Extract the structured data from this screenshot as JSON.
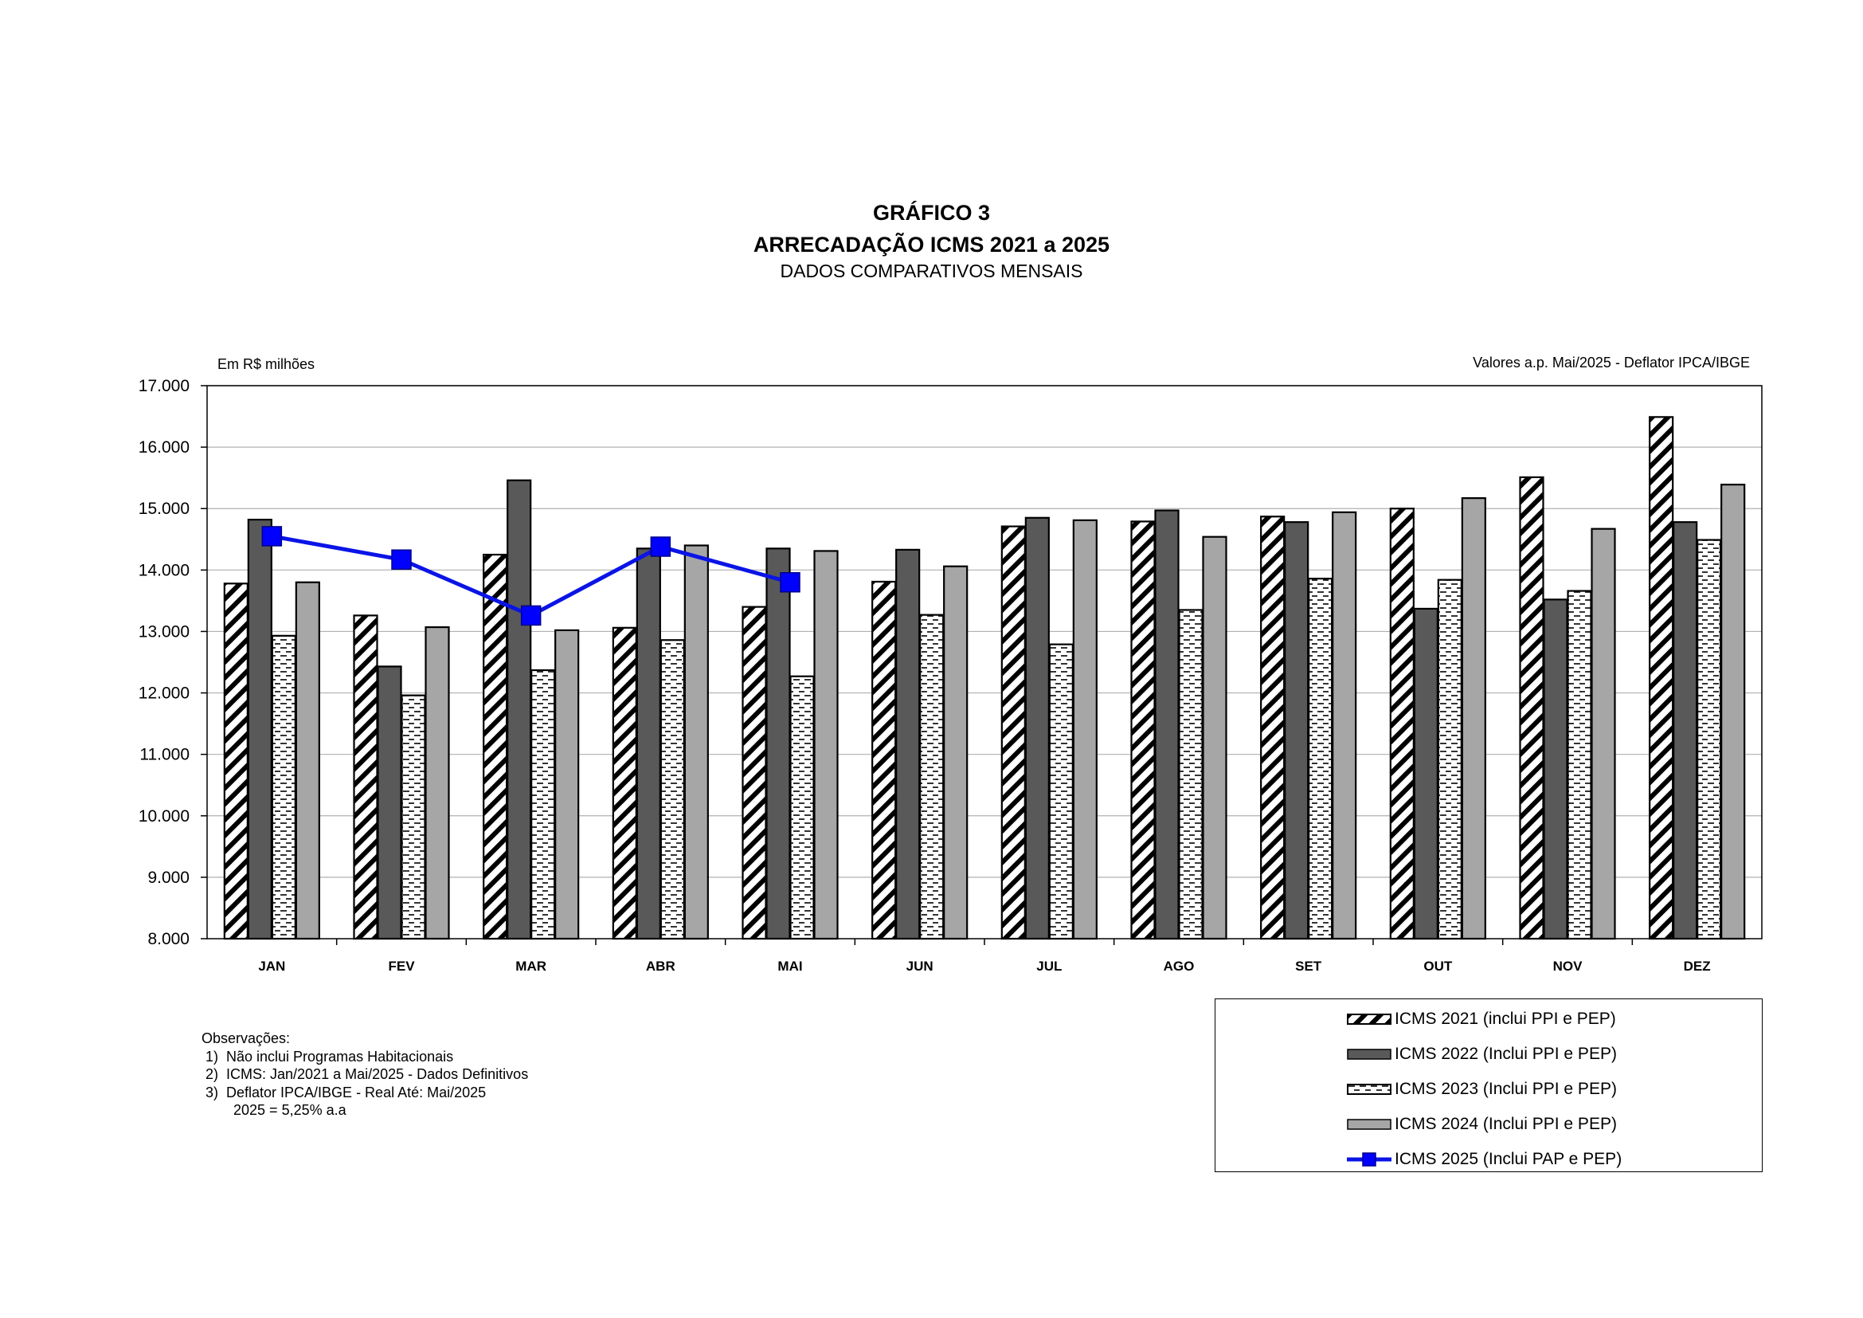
{
  "header": {
    "title": "GRÁFICO 3",
    "subtitle": "ARRECADAÇÃO ICMS 2021 a 2025",
    "subtitle2": "DADOS COMPARATIVOS MENSAIS"
  },
  "unit_label": "Em R$ milhões",
  "note_right": "Valores a.p. Mai/2025 - Deflator IPCA/IBGE",
  "observations": {
    "heading": "Observações:",
    "items": [
      " 1)  Não inclui Programas Habitacionais",
      " 2)  ICMS: Jan/2021 a Mai/2025 - Dados Definitivos",
      " 3)  Deflator IPCA/IBGE - Real Até: Mai/2025",
      "        2025 = 5,25% a.a"
    ]
  },
  "colors": {
    "series_2022": "#595959",
    "series_2024": "#a6a6a6",
    "series_2025_line": "#0a14e6",
    "series_2025_marker": "#0000ff",
    "gridline": "#b0b0b0"
  },
  "chart_data": {
    "type": "bar",
    "title": "ARRECADAÇÃO ICMS 2021 a 2025",
    "categories": [
      "JAN",
      "FEV",
      "MAR",
      "ABR",
      "MAI",
      "JUN",
      "JUL",
      "AGO",
      "SET",
      "OUT",
      "NOV",
      "DEZ"
    ],
    "ylim": [
      8000,
      17000
    ],
    "yticks": [
      8000,
      9000,
      10000,
      11000,
      12000,
      13000,
      14000,
      15000,
      16000,
      17000
    ],
    "ytick_labels": [
      "8.000",
      "9.000",
      "10.000",
      "11.000",
      "12.000",
      "13.000",
      "14.000",
      "15.000",
      "16.000",
      "17.000"
    ],
    "grid": true,
    "legend_position": "bottom-right",
    "series": [
      {
        "name": "ICMS 2021 (inclui PPI e PEP)",
        "kind": "bar",
        "pattern": "diagonal-hatch",
        "values": [
          13780,
          13260,
          14250,
          13060,
          13400,
          13810,
          14710,
          14790,
          14870,
          15000,
          15510,
          16490
        ]
      },
      {
        "name": "ICMS 2022 (Inclui PPI e PEP)",
        "kind": "bar",
        "pattern": "solid-dark",
        "values": [
          14820,
          12430,
          15460,
          14350,
          14350,
          14330,
          14850,
          14970,
          14780,
          13370,
          13520,
          14780
        ]
      },
      {
        "name": "ICMS 2023 (Inclui PPI e PEP)",
        "kind": "bar",
        "pattern": "dashes",
        "values": [
          12930,
          11960,
          12370,
          12860,
          12270,
          13270,
          12790,
          13350,
          13860,
          13840,
          13660,
          14490
        ]
      },
      {
        "name": "ICMS 2024 (Inclui PPI e PEP)",
        "kind": "bar",
        "pattern": "solid-light",
        "values": [
          13800,
          13070,
          13020,
          14400,
          14310,
          14060,
          14810,
          14540,
          14940,
          15170,
          14670,
          15390
        ]
      },
      {
        "name": "ICMS 2025 (Inclui PAP e PEP)",
        "kind": "line",
        "values": [
          14550,
          14170,
          13260,
          14380,
          13800,
          null,
          null,
          null,
          null,
          null,
          null,
          null
        ]
      }
    ]
  }
}
